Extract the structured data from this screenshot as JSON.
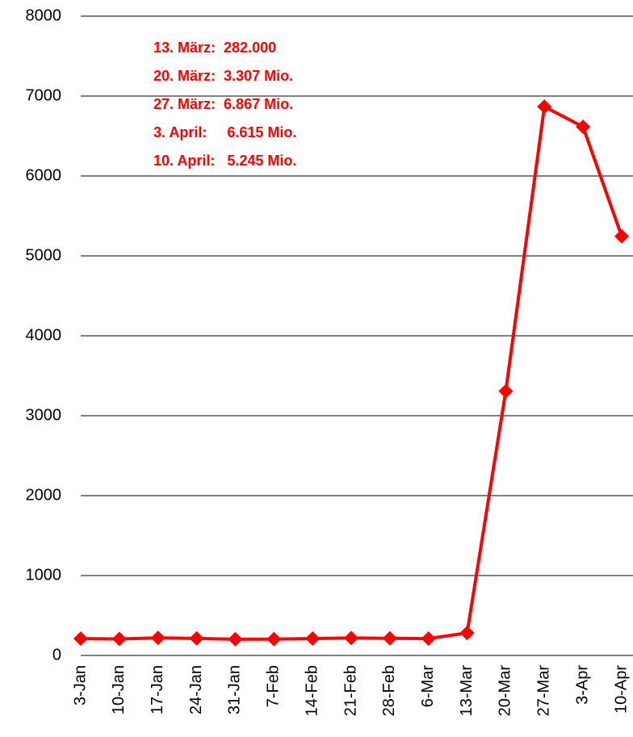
{
  "chart_data": {
    "type": "line",
    "categories": [
      "3-Jan",
      "10-Jan",
      "17-Jan",
      "24-Jan",
      "31-Jan",
      "7-Feb",
      "14-Feb",
      "21-Feb",
      "28-Feb",
      "6-Mar",
      "13-Mar",
      "20-Mar",
      "27-Mar",
      "3-Apr",
      "10-Apr"
    ],
    "series": [
      {
        "color": "#ff0000",
        "values": [
          211,
          207,
          220,
          213,
          203,
          205,
          212,
          218,
          215,
          211,
          282,
          3307,
          6867,
          6615,
          5245
        ]
      }
    ],
    "ylim": [
      0,
      8000
    ],
    "yticks": [
      0,
      1000,
      2000,
      3000,
      4000,
      5000,
      6000,
      7000,
      8000
    ],
    "grid": true,
    "annotations": [
      "13. März:  282.000",
      "20. März:  3.307 Mio.",
      "27. März:  6.867 Mio.",
      "3. April:     6.615 Mio.",
      "10. April:   5.245 Mio."
    ],
    "annotation_color": "#ff0000"
  }
}
